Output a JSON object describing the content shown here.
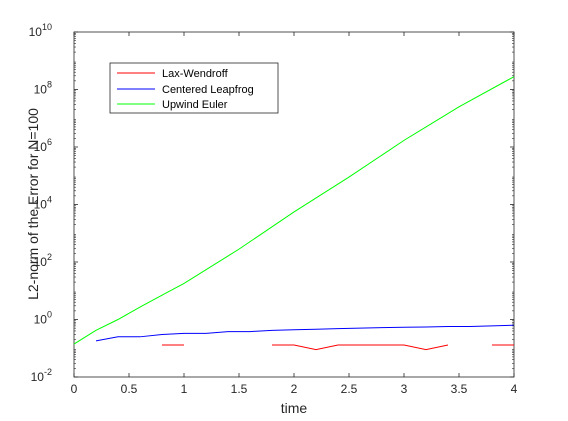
{
  "chart_data": {
    "type": "line",
    "title": "",
    "xlabel": "time",
    "ylabel": "L2-norm of the Error for N=100",
    "xlim": [
      0,
      4
    ],
    "ylim_log10": [
      -2,
      10
    ],
    "yscale": "log",
    "grid": false,
    "legend_position": "top-left",
    "x_ticks": [
      "0",
      "0.5",
      "1",
      "1.5",
      "2",
      "2.5",
      "3",
      "3.5",
      "4"
    ],
    "y_ticks": [
      {
        "base": "10",
        "exp": "-2",
        "log10": -2
      },
      {
        "base": "10",
        "exp": "0",
        "log10": 0
      },
      {
        "base": "10",
        "exp": "2",
        "log10": 2
      },
      {
        "base": "10",
        "exp": "4",
        "log10": 4
      },
      {
        "base": "10",
        "exp": "6",
        "log10": 6
      },
      {
        "base": "10",
        "exp": "8",
        "log10": 8
      },
      {
        "base": "10",
        "exp": "10",
        "log10": 10
      }
    ],
    "series": [
      {
        "name": "Lax-Wendroff",
        "color": "#ff0000",
        "segments": [
          {
            "x": [
              0.8,
              1.0
            ],
            "y": [
              0.13,
              0.13
            ]
          },
          {
            "x": [
              1.8,
              2.0,
              2.2,
              2.4,
              2.6,
              2.8,
              3.0,
              3.2,
              3.4
            ],
            "y": [
              0.13,
              0.13,
              0.09,
              0.13,
              0.13,
              0.13,
              0.13,
              0.09,
              0.13
            ]
          },
          {
            "x": [
              3.8,
              4.0
            ],
            "y": [
              0.13,
              0.13
            ]
          }
        ]
      },
      {
        "name": "Centered Leapfrog",
        "color": "#0000ff",
        "segments": [
          {
            "x": [
              0.2,
              0.4,
              0.6,
              0.8,
              1.0,
              1.2,
              1.4,
              1.6,
              1.8,
              2.0,
              2.2,
              2.4,
              2.6,
              2.8,
              3.0,
              3.2,
              3.4,
              3.6,
              3.8,
              4.0
            ],
            "y": [
              0.18,
              0.25,
              0.25,
              0.3,
              0.33,
              0.33,
              0.38,
              0.38,
              0.42,
              0.44,
              0.46,
              0.48,
              0.5,
              0.52,
              0.54,
              0.55,
              0.57,
              0.57,
              0.6,
              0.63
            ]
          }
        ]
      },
      {
        "name": "Upwind Euler",
        "color": "#00ff00",
        "segments": [
          {
            "x": [
              0.0,
              0.2,
              0.4,
              0.6,
              0.8,
              1.0,
              1.5,
              2.0,
              2.5,
              3.0,
              3.5,
              4.0
            ],
            "y": [
              0.14,
              0.42,
              1.0,
              2.7,
              7.0,
              18.0,
              280.0,
              5500.0,
              90000.0,
              1700000.0,
              25000000.0,
              280000000.0
            ]
          }
        ]
      }
    ]
  }
}
